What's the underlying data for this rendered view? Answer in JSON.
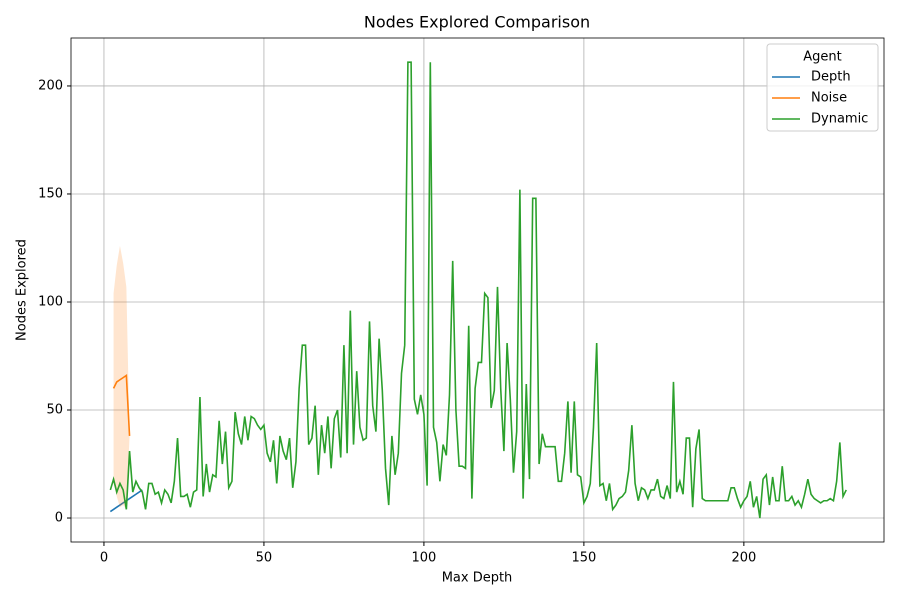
{
  "chart_data": {
    "type": "line",
    "title": "Nodes Explored Comparison",
    "x_label": "Max Depth",
    "y_label": "Nodes Explored",
    "xlim": [
      -10.3,
      243.8
    ],
    "ylim": [
      -11.1,
      222.2
    ],
    "xticks": [
      0,
      50,
      100,
      150,
      200
    ],
    "yticks": [
      0,
      50,
      100,
      150,
      200
    ],
    "grid": true,
    "legend_title": "Agent",
    "legend_position": "upper right",
    "series": [
      {
        "name": "Depth",
        "color": "#1f77b4",
        "x": [
          2,
          4,
          6,
          8,
          10,
          12
        ],
        "values": [
          3,
          5,
          7,
          9,
          11,
          13
        ]
      },
      {
        "name": "Noise",
        "color": "#ff7f0e",
        "x": [
          3,
          4,
          5,
          6,
          7,
          8
        ],
        "values": [
          60,
          63,
          64,
          65,
          66,
          38
        ],
        "lower": [
          16,
          10,
          5,
          6,
          4,
          38
        ],
        "upper": [
          104,
          117,
          126,
          118,
          107,
          38
        ]
      },
      {
        "name": "Dynamic",
        "color": "#2ca02c",
        "x": [
          2,
          3,
          4,
          5,
          6,
          7,
          8,
          9,
          10,
          11,
          12,
          13,
          14,
          15,
          16,
          17,
          18,
          19,
          20,
          21,
          22,
          23,
          24,
          25,
          26,
          27,
          28,
          29,
          30,
          31,
          32,
          33,
          34,
          35,
          36,
          37,
          38,
          39,
          40,
          41,
          42,
          43,
          44,
          45,
          46,
          47,
          48,
          49,
          50,
          51,
          52,
          53,
          54,
          55,
          56,
          57,
          58,
          59,
          60,
          61,
          62,
          63,
          64,
          65,
          66,
          67,
          68,
          69,
          70,
          71,
          72,
          73,
          74,
          75,
          76,
          77,
          78,
          79,
          80,
          81,
          82,
          83,
          84,
          85,
          86,
          87,
          88,
          89,
          90,
          91,
          92,
          93,
          94,
          95,
          96,
          97,
          98,
          99,
          100,
          101,
          102,
          103,
          104,
          105,
          106,
          107,
          108,
          109,
          110,
          111,
          112,
          113,
          114,
          115,
          116,
          117,
          118,
          119,
          120,
          121,
          122,
          123,
          124,
          125,
          126,
          127,
          128,
          129,
          130,
          131,
          132,
          133,
          134,
          135,
          136,
          137,
          138,
          139,
          140,
          141,
          142,
          143,
          144,
          145,
          146,
          147,
          148,
          149,
          150,
          151,
          152,
          153,
          154,
          155,
          156,
          157,
          158,
          159,
          160,
          161,
          162,
          163,
          164,
          165,
          166,
          167,
          168,
          169,
          170,
          171,
          172,
          173,
          174,
          175,
          176,
          177,
          178,
          179,
          180,
          181,
          182,
          183,
          184,
          185,
          186,
          187,
          188,
          189,
          190,
          191,
          192,
          193,
          194,
          195,
          196,
          197,
          198,
          199,
          200,
          201,
          202,
          203,
          204,
          205,
          206,
          207,
          208,
          209,
          210,
          211,
          212,
          213,
          214,
          215,
          216,
          217,
          218,
          219,
          220,
          221,
          222,
          223,
          224,
          225,
          226,
          227,
          228,
          229,
          230,
          231,
          232
        ],
        "values": [
          13,
          18,
          12,
          16,
          13,
          4,
          31,
          12,
          17,
          14,
          12,
          4,
          16,
          16,
          11,
          12,
          7,
          13,
          11,
          7,
          17,
          37,
          10,
          10,
          11,
          5,
          12,
          13,
          56,
          10,
          25,
          12,
          20,
          19,
          45,
          25,
          40,
          14,
          17,
          49,
          39,
          34,
          47,
          36,
          47,
          46,
          43,
          41,
          43,
          30,
          26,
          36,
          16,
          38,
          31,
          27,
          37,
          14,
          26,
          60,
          80,
          80,
          34,
          37,
          52,
          20,
          43,
          30,
          47,
          23,
          46,
          50,
          28,
          80,
          30,
          96,
          34,
          68,
          42,
          36,
          37,
          91,
          52,
          40,
          83,
          59,
          23,
          6,
          38,
          20,
          30,
          67,
          80,
          211,
          211,
          55,
          48,
          57,
          48,
          15,
          211,
          42,
          35,
          17,
          34,
          29,
          57,
          119,
          50,
          24,
          24,
          23,
          89,
          9,
          60,
          72,
          72,
          104,
          102,
          51,
          59,
          107,
          60,
          31,
          81,
          55,
          21,
          40,
          152,
          9,
          62,
          18,
          148,
          148,
          25,
          39,
          33,
          33,
          33,
          33,
          17,
          17,
          30,
          54,
          21,
          54,
          20,
          19,
          7,
          10,
          16,
          42,
          81,
          15,
          16,
          8,
          16,
          4,
          6,
          9,
          10,
          12,
          22,
          43,
          16,
          8,
          14,
          13,
          9,
          13,
          13,
          18,
          10,
          9,
          15,
          9,
          63,
          12,
          17,
          11,
          37,
          37,
          5,
          32,
          41,
          9,
          8,
          8,
          8,
          8,
          8,
          8,
          8,
          8,
          14,
          14,
          9,
          5,
          8,
          10,
          17,
          5,
          10,
          0,
          18,
          20,
          6,
          19,
          8,
          8,
          24,
          8,
          8,
          10,
          6,
          8,
          5,
          11,
          18,
          11,
          9,
          8,
          7,
          8,
          8,
          9,
          8,
          17,
          35,
          10,
          13
        ]
      }
    ]
  }
}
